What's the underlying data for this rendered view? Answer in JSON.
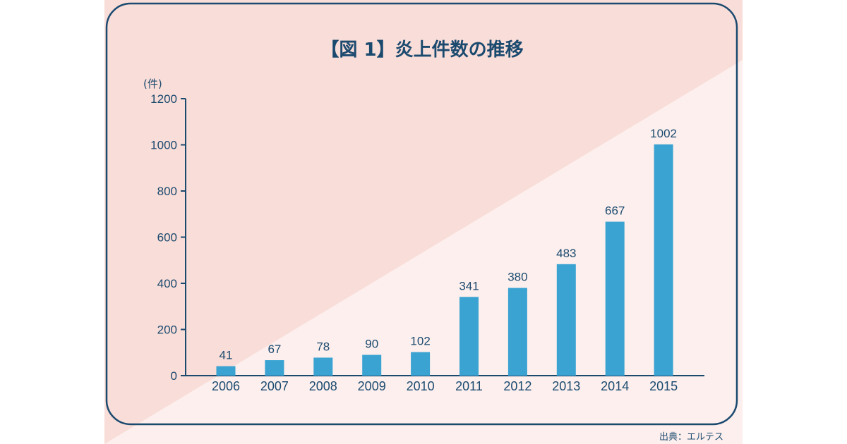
{
  "colors": {
    "background_pink": "#f9ddd8",
    "background_light": "#fcefed",
    "frame": "#1b4a6f",
    "bar": "#3aa3d2",
    "text": "#1b4a6f"
  },
  "chart_data": {
    "type": "bar",
    "title": "【図 1】炎上件数の推移",
    "unit_label": "(件)",
    "categories": [
      "2006",
      "2007",
      "2008",
      "2009",
      "2010",
      "2011",
      "2012",
      "2013",
      "2014",
      "2015"
    ],
    "values": [
      41,
      67,
      78,
      90,
      102,
      341,
      380,
      483,
      667,
      1002
    ],
    "data_labels": [
      "41",
      "67",
      "78",
      "90",
      "102",
      "341",
      "380",
      "483",
      "667",
      "1002"
    ],
    "ylim": [
      0,
      1200
    ],
    "yticks": [
      0,
      200,
      400,
      600,
      800,
      1000,
      1200
    ],
    "ytick_labels": [
      "0",
      "200",
      "400",
      "600",
      "800",
      "1000",
      "1200"
    ],
    "grid": false,
    "legend": "none",
    "source": "出典：エルテス"
  }
}
